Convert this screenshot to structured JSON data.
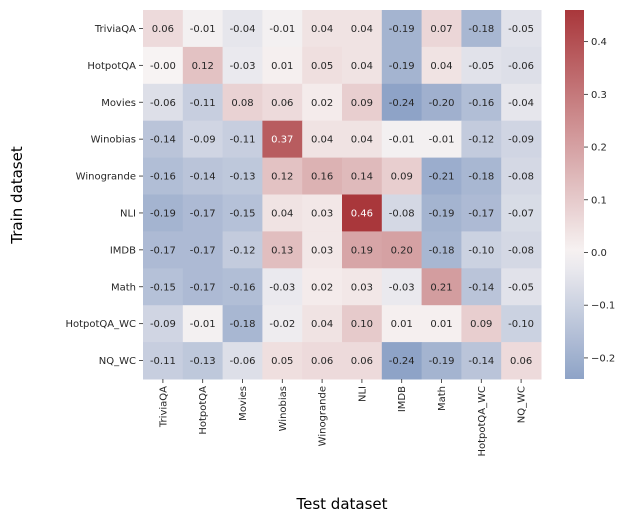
{
  "chart_data": {
    "type": "heatmap",
    "title": "",
    "xlabel": "Test dataset",
    "ylabel": "Train dataset",
    "x_categories": [
      "TriviaQA",
      "HotpotQA",
      "Movies",
      "Winobias",
      "Winogrande",
      "NLI",
      "IMDB",
      "Math",
      "HotpotQA_WC",
      "NQ_WC"
    ],
    "y_categories": [
      "TriviaQA",
      "HotpotQA",
      "Movies",
      "Winobias",
      "Winogrande",
      "NLI",
      "IMDB",
      "Math",
      "HotpotQA_WC",
      "NQ_WC"
    ],
    "values": [
      [
        0.06,
        -0.01,
        -0.04,
        -0.01,
        0.04,
        0.04,
        -0.19,
        0.07,
        -0.18,
        -0.05
      ],
      [
        -0.0,
        0.12,
        -0.03,
        0.01,
        0.05,
        0.04,
        -0.19,
        0.04,
        -0.05,
        -0.06
      ],
      [
        -0.06,
        -0.11,
        0.08,
        0.06,
        0.02,
        0.09,
        -0.24,
        -0.2,
        -0.16,
        -0.04
      ],
      [
        -0.14,
        -0.09,
        -0.11,
        0.37,
        0.04,
        0.04,
        -0.01,
        -0.01,
        -0.12,
        -0.09
      ],
      [
        -0.16,
        -0.14,
        -0.13,
        0.12,
        0.16,
        0.14,
        0.09,
        -0.21,
        -0.18,
        -0.08
      ],
      [
        -0.19,
        -0.17,
        -0.15,
        0.04,
        0.03,
        0.46,
        -0.08,
        -0.19,
        -0.17,
        -0.07
      ],
      [
        -0.17,
        -0.17,
        -0.12,
        0.13,
        0.03,
        0.19,
        0.2,
        -0.18,
        -0.1,
        -0.08
      ],
      [
        -0.15,
        -0.17,
        -0.16,
        -0.03,
        0.02,
        0.03,
        -0.03,
        0.21,
        -0.14,
        -0.05
      ],
      [
        -0.09,
        -0.01,
        -0.18,
        -0.02,
        0.04,
        0.1,
        0.01,
        0.01,
        0.09,
        -0.1
      ],
      [
        -0.11,
        -0.13,
        -0.06,
        0.05,
        0.06,
        0.06,
        -0.24,
        -0.19,
        -0.14,
        0.06
      ]
    ],
    "value_format": "0.00",
    "colormap": "diverging blue-white-red (vlag), centered at 0",
    "colors": {
      "negative": "#8ea3c7",
      "center": "#f7f3f3",
      "positive": "#a9373b"
    },
    "vmin": -0.24,
    "vmax": 0.46,
    "colorbar": {
      "ticks": [
        0.4,
        0.3,
        0.2,
        0.1,
        0.0,
        -0.1,
        -0.2
      ],
      "tick_labels": [
        "0.4",
        "0.3",
        "0.2",
        "0.1",
        "0.0",
        "−0.1",
        "−0.2"
      ]
    },
    "grid": false,
    "legend": "colorbar-right"
  }
}
